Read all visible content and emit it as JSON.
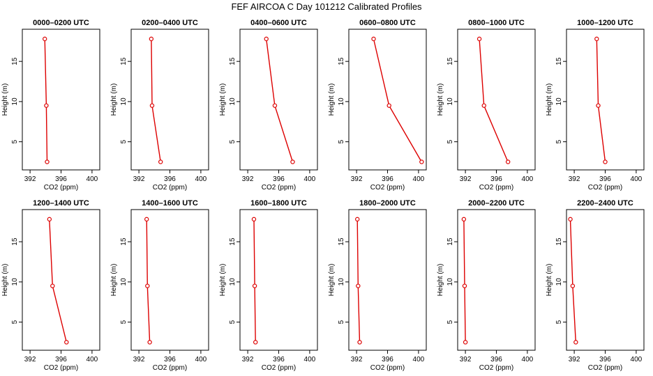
{
  "figure_title": "FEF AIRCOA C  Day 101212  Calibrated Profiles",
  "chart_data": {
    "type": "line",
    "orientation": "profile",
    "xlabel": "CO2 (ppm)",
    "ylabel": "Height (m)",
    "xlim": [
      391,
      401
    ],
    "ylim": [
      1.5,
      19
    ],
    "xticks": [
      392,
      396,
      400
    ],
    "xtick_labels": [
      "392",
      "396",
      "400"
    ],
    "yticks": [
      5,
      10,
      15
    ],
    "ytick_labels": [
      "5",
      "10",
      "15"
    ],
    "heights": [
      17.8,
      9.5,
      2.5
    ],
    "panels": [
      {
        "title": "0000–0200 UTC",
        "co2": [
          393.9,
          394.1,
          394.2
        ]
      },
      {
        "title": "0200–0400 UTC",
        "co2": [
          393.6,
          393.7,
          394.8
        ]
      },
      {
        "title": "0400–0600 UTC",
        "co2": [
          394.4,
          395.5,
          397.8
        ]
      },
      {
        "title": "0600–0800 UTC",
        "co2": [
          394.2,
          396.2,
          400.4
        ]
      },
      {
        "title": "0800–1000 UTC",
        "co2": [
          393.8,
          394.4,
          397.5
        ]
      },
      {
        "title": "1000–1200 UTC",
        "co2": [
          394.9,
          395.1,
          396.0
        ]
      },
      {
        "title": "1200–1400 UTC",
        "co2": [
          394.5,
          394.9,
          396.7
        ]
      },
      {
        "title": "1400–1600 UTC",
        "co2": [
          393.0,
          393.1,
          393.4
        ]
      },
      {
        "title": "1600–1800 UTC",
        "co2": [
          392.8,
          392.9,
          393.0
        ]
      },
      {
        "title": "1800–2000 UTC",
        "co2": [
          392.1,
          392.2,
          392.4
        ]
      },
      {
        "title": "2000–2200 UTC",
        "co2": [
          391.8,
          391.9,
          392.0
        ]
      },
      {
        "title": "2200–2400 UTC",
        "co2": [
          391.5,
          391.8,
          392.2
        ]
      }
    ]
  }
}
